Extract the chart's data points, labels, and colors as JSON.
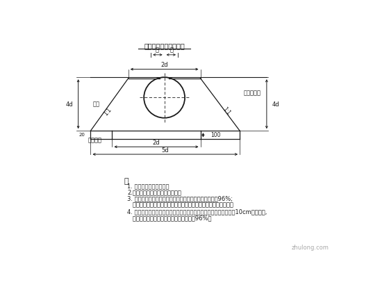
{
  "bg_color": "#ffffff",
  "line_color": "#1a1a1a",
  "title": "波纹管涵基础节点详图",
  "label_pipe": "管槽",
  "label_zone": "特殊夯实区",
  "label_foundation": "沙砾基础",
  "label_slope_left": "1:1",
  "label_slope_right": "1:1",
  "notes_title": "注",
  "notes": [
    "1. 本图尺寸均以厘米计。",
    "2.沙砾基础采用级配良好的沙砾。",
    "3. 基础应采用振动压实机械进行分层碾压，压实度不小于96%;",
    "   管底椭形部分可采用小型夯实机械斜向夯实或采用人工木榫夯实。",
    "4. 图中在管身两侧范围内为特别夯实区，两侧回填应对称施工，按每10cm分层夯实,",
    "   天然砂砾填料压实后相对密实度不得小于96%。"
  ],
  "dim_top_label": "2d",
  "dim_sub1": "龄",
  "dim_sub2": "齢",
  "dim_base": "2d",
  "dim_total": "5d",
  "dim_height": "4d",
  "dim_base_h": "100",
  "watermark": "zhulong.com"
}
